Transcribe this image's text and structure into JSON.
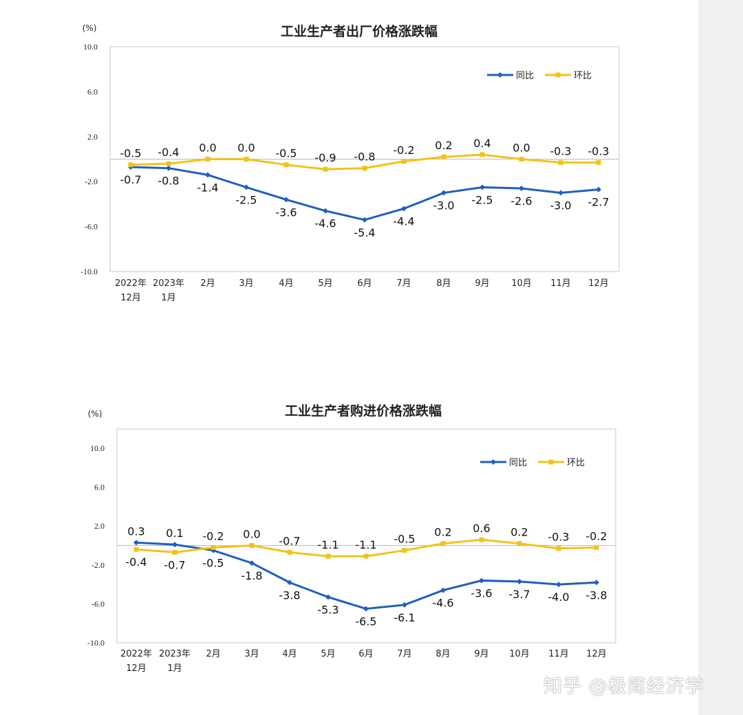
{
  "watermark": "知乎 @极简经济学",
  "colors": {
    "yoy": "#1f5fbf",
    "mom": "#f2c21a",
    "axis": "#c8c8c8"
  },
  "chart_data": [
    {
      "type": "line",
      "title": "工业生产者出厂价格涨跌幅",
      "ylabel": "(%)",
      "ylim": [
        -10,
        10
      ],
      "yticks": [
        "10.0",
        "6.0",
        "2.0",
        "-2.0",
        "-6.0",
        "-10.0"
      ],
      "ytick_values": [
        10,
        6,
        2,
        -2,
        -6,
        -10
      ],
      "categories": [
        [
          "2022年",
          "12月"
        ],
        [
          "2023年",
          "1月"
        ],
        [
          "2月"
        ],
        [
          "3月"
        ],
        [
          "4月"
        ],
        [
          "5月"
        ],
        [
          "6月"
        ],
        [
          "7月"
        ],
        [
          "8月"
        ],
        [
          "9月"
        ],
        [
          "10月"
        ],
        [
          "11月"
        ],
        [
          "12月"
        ]
      ],
      "legend_position": "top-right",
      "series": [
        {
          "name": "同比",
          "values": [
            -0.7,
            -0.8,
            -1.4,
            -2.5,
            -3.6,
            -4.6,
            -5.4,
            -4.4,
            -3.0,
            -2.5,
            -2.6,
            -3.0,
            -2.7
          ]
        },
        {
          "name": "环比",
          "values": [
            -0.5,
            -0.4,
            0.0,
            0.0,
            -0.5,
            -0.9,
            -0.8,
            -0.2,
            0.2,
            0.4,
            0.0,
            -0.3,
            -0.3
          ]
        }
      ]
    },
    {
      "type": "line",
      "title": "工业生产者购进价格涨跌幅",
      "ylabel": "(%)",
      "ylim": [
        -10,
        10
      ],
      "yticks": [
        "10.0",
        "6.0",
        "2.0",
        "-2.0",
        "-6.0",
        "-10.0"
      ],
      "ytick_values": [
        10,
        6,
        2,
        -2,
        -6,
        -10
      ],
      "categories": [
        [
          "2022年",
          "12月"
        ],
        [
          "2023年",
          "1月"
        ],
        [
          "2月"
        ],
        [
          "3月"
        ],
        [
          "4月"
        ],
        [
          "5月"
        ],
        [
          "6月"
        ],
        [
          "7月"
        ],
        [
          "8月"
        ],
        [
          "9月"
        ],
        [
          "10月"
        ],
        [
          "11月"
        ],
        [
          "12月"
        ]
      ],
      "legend_position": "top-right",
      "series": [
        {
          "name": "同比",
          "values": [
            0.3,
            0.1,
            -0.5,
            -1.8,
            -3.8,
            -5.3,
            -6.5,
            -6.1,
            -4.6,
            -3.6,
            -3.7,
            -4.0,
            -3.8
          ]
        },
        {
          "name": "环比",
          "values": [
            -0.4,
            -0.7,
            -0.2,
            0.0,
            -0.7,
            -1.1,
            -1.1,
            -0.5,
            0.2,
            0.6,
            0.2,
            -0.3,
            -0.2
          ]
        }
      ]
    }
  ]
}
